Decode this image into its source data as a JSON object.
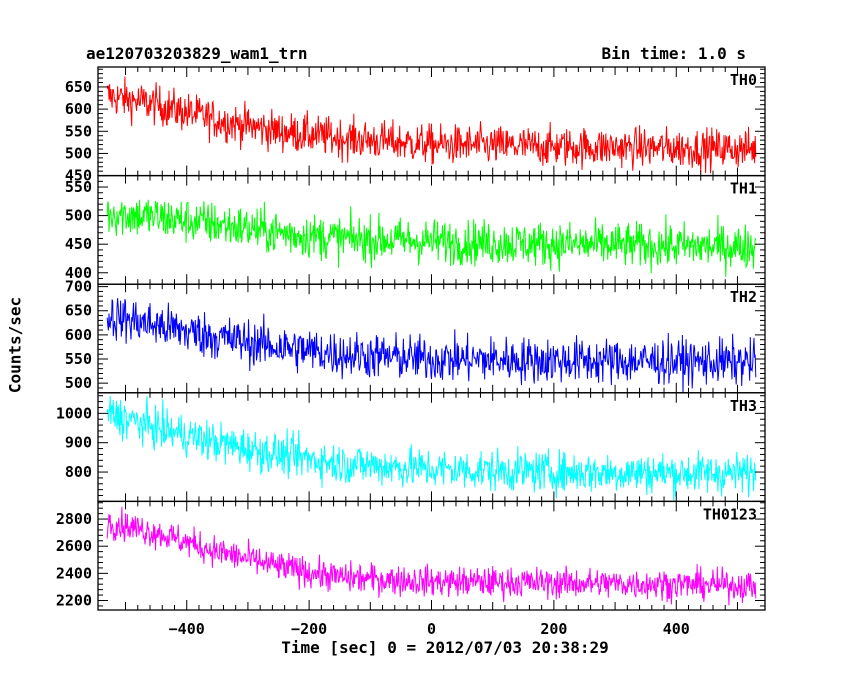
{
  "header": {
    "title": "ae120703203829_wam1_trn",
    "bin_time": "Bin time: 1.0 s"
  },
  "chart_data": {
    "type": "line",
    "xlabel": "Time [sec] 0 = 2012/07/03 20:38:29",
    "ylabel": "Counts/sec",
    "xlim": [
      -545,
      545
    ],
    "x_range_data": [
      -530,
      530
    ],
    "x_ticks": [
      -400,
      -200,
      0,
      200,
      400
    ],
    "panels": [
      {
        "name": "TH0",
        "color": "#ff0000",
        "ylim": [
          450,
          695
        ],
        "yticks": [
          450,
          500,
          550,
          600,
          650
        ],
        "trend": [
          [
            -530,
            630
          ],
          [
            -450,
            610
          ],
          [
            -350,
            575
          ],
          [
            -250,
            550
          ],
          [
            -150,
            535
          ],
          [
            0,
            520
          ],
          [
            200,
            515
          ],
          [
            400,
            512
          ],
          [
            530,
            510
          ]
        ],
        "noise": 32
      },
      {
        "name": "TH1",
        "color": "#00ff00",
        "ylim": [
          380,
          570
        ],
        "yticks": [
          400,
          450,
          500,
          550
        ],
        "trend": [
          [
            -530,
            505
          ],
          [
            -450,
            497
          ],
          [
            -350,
            485
          ],
          [
            -250,
            470
          ],
          [
            -150,
            460
          ],
          [
            0,
            455
          ],
          [
            200,
            450
          ],
          [
            400,
            447
          ],
          [
            530,
            445
          ]
        ],
        "noise": 28
      },
      {
        "name": "TH2",
        "color": "#0000ff",
        "ylim": [
          480,
          705
        ],
        "yticks": [
          500,
          550,
          600,
          650,
          700
        ],
        "trend": [
          [
            -530,
            640
          ],
          [
            -450,
            620
          ],
          [
            -350,
            595
          ],
          [
            -250,
            575
          ],
          [
            -150,
            560
          ],
          [
            0,
            550
          ],
          [
            200,
            547
          ],
          [
            400,
            545
          ],
          [
            530,
            543
          ]
        ],
        "noise": 34
      },
      {
        "name": "TH3",
        "color": "#00ffff",
        "ylim": [
          700,
          1070
        ],
        "yticks": [
          800,
          900,
          1000
        ],
        "trend": [
          [
            -530,
            1000
          ],
          [
            -450,
            950
          ],
          [
            -350,
            900
          ],
          [
            -250,
            860
          ],
          [
            -150,
            830
          ],
          [
            0,
            810
          ],
          [
            200,
            800
          ],
          [
            400,
            797
          ],
          [
            530,
            795
          ]
        ],
        "noise": 50
      },
      {
        "name": "TH0123",
        "color": "#ff00ff",
        "ylim": [
          2130,
          2930
        ],
        "yticks": [
          2200,
          2400,
          2600,
          2800
        ],
        "trend": [
          [
            -530,
            2780
          ],
          [
            -450,
            2700
          ],
          [
            -350,
            2560
          ],
          [
            -250,
            2450
          ],
          [
            -150,
            2370
          ],
          [
            0,
            2340
          ],
          [
            200,
            2330
          ],
          [
            400,
            2320
          ],
          [
            530,
            2310
          ]
        ],
        "noise": 80
      }
    ]
  }
}
